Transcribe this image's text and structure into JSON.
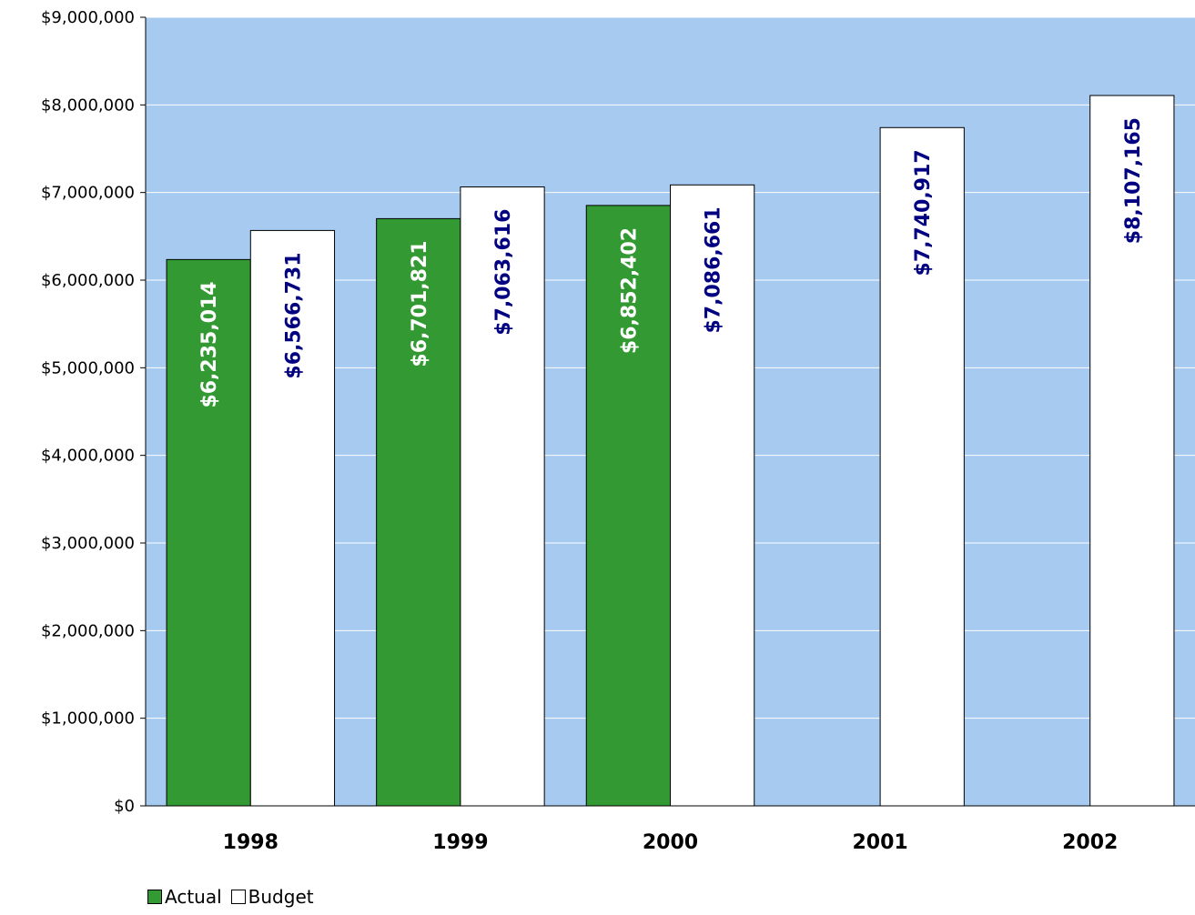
{
  "chart_data": {
    "type": "bar",
    "categories": [
      "1998",
      "1999",
      "2000",
      "2001",
      "2002"
    ],
    "series": [
      {
        "name": "Actual",
        "values": [
          6235014,
          6701821,
          6852402,
          null,
          null
        ],
        "labels": [
          "$6,235,014",
          "$6,701,821",
          "$6,852,402",
          "",
          ""
        ],
        "color": "#339933",
        "label_color": "#ffffff"
      },
      {
        "name": "Budget",
        "values": [
          6566731,
          7063616,
          7086661,
          7740917,
          8107165
        ],
        "labels": [
          "$6,566,731",
          "$7,063,616",
          "$7,086,661",
          "$7,740,917",
          "$8,107,165"
        ],
        "color": "#ffffff",
        "label_color": "#000080"
      }
    ],
    "ylim": [
      0,
      9000000
    ],
    "yticks": [
      0,
      1000000,
      2000000,
      3000000,
      4000000,
      5000000,
      6000000,
      7000000,
      8000000,
      9000000
    ],
    "ytick_labels": [
      "$0",
      "$1,000,000",
      "$2,000,000",
      "$3,000,000",
      "$4,000,000",
      "$5,000,000",
      "$6,000,000",
      "$7,000,000",
      "$8,000,000",
      "$9,000,000"
    ],
    "grid": true,
    "legend_position": "bottom-left",
    "plot_background": "#a6caf0"
  }
}
